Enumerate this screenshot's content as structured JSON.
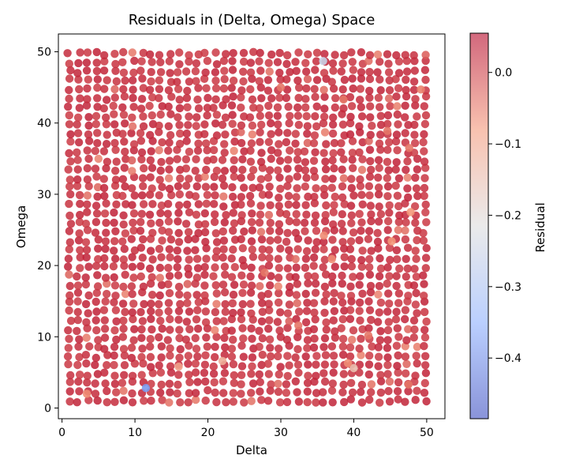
{
  "chart_data": {
    "type": "scatter",
    "title": "Residuals in (Delta, Omega) Space",
    "xlabel": "Delta",
    "ylabel": "Omega",
    "xlim": [
      -0.5,
      52.5
    ],
    "ylim": [
      -1.5,
      52.5
    ],
    "xticks": [
      0,
      10,
      20,
      30,
      40,
      50
    ],
    "yticks": [
      0,
      10,
      20,
      30,
      40,
      50
    ],
    "colorbar": {
      "label": "Residual",
      "range": [
        -0.485,
        0.055
      ],
      "ticks": [
        0.0,
        -0.1,
        -0.2,
        -0.3,
        -0.4
      ],
      "tick_labels": [
        "0.0",
        "−0.1",
        "−0.2",
        "−0.3",
        "−0.4"
      ],
      "colormap": "coolwarm",
      "colormap_stops": [
        "#3b4cc0",
        "#8db0fe",
        "#dddddd",
        "#f4987a",
        "#b40426"
      ]
    },
    "dominant_color": "#d65244",
    "points_note": "dense uniform grid of points covering Delta 1–50, Omega 1–50; residual near 0 almost everywhere",
    "notable_points": [
      {
        "x": 11.5,
        "y": 2.8,
        "value": -0.38
      },
      {
        "x": 35.8,
        "y": 48.7,
        "value": -0.25
      },
      {
        "x": 40.0,
        "y": 5.6,
        "value": -0.15
      },
      {
        "x": 16.0,
        "y": 5.8,
        "value": -0.1
      },
      {
        "x": 47.8,
        "y": 27.5,
        "value": -0.08
      },
      {
        "x": 45.2,
        "y": 23.4,
        "value": -0.08
      },
      {
        "x": 35.9,
        "y": 24.2,
        "value": -0.07
      },
      {
        "x": 37.0,
        "y": 20.9,
        "value": -0.07
      },
      {
        "x": 39.2,
        "y": 6.3,
        "value": -0.07
      },
      {
        "x": 3.4,
        "y": 2.0,
        "value": -0.07
      },
      {
        "x": 22.0,
        "y": 6.6,
        "value": -0.12
      },
      {
        "x": 30.0,
        "y": 45.0,
        "value": -0.05
      },
      {
        "x": 38.6,
        "y": 43.3,
        "value": -0.05
      },
      {
        "x": 47.6,
        "y": 36.5,
        "value": -0.05
      },
      {
        "x": 27.8,
        "y": 19.0,
        "value": -0.05
      },
      {
        "x": 44.6,
        "y": 38.9,
        "value": -0.05
      },
      {
        "x": 49.2,
        "y": 44.7,
        "value": -0.06
      },
      {
        "x": 32.4,
        "y": 11.6,
        "value": -0.05
      },
      {
        "x": 47.5,
        "y": 3.3,
        "value": -0.05
      },
      {
        "x": 42.0,
        "y": 10.2,
        "value": -0.05
      }
    ]
  }
}
